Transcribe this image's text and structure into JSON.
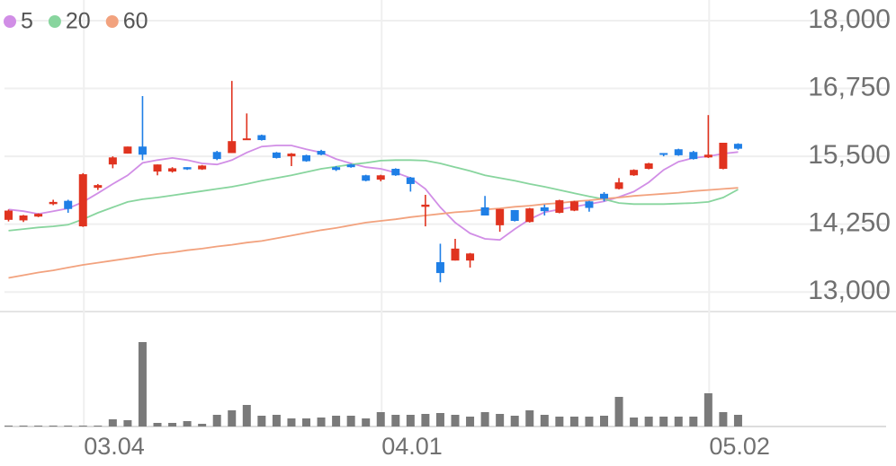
{
  "chart_data": [
    {
      "type": "candlestick",
      "categories": [
        null,
        null,
        null,
        null,
        null,
        "03.04",
        null,
        null,
        null,
        null,
        null,
        null,
        null,
        null,
        null,
        null,
        null,
        null,
        null,
        null,
        null,
        null,
        null,
        null,
        null,
        "04.01",
        null,
        null,
        null,
        null,
        null,
        null,
        null,
        null,
        null,
        null,
        null,
        null,
        null,
        null,
        null,
        null,
        null,
        null,
        null,
        null,
        null,
        "05.02",
        null,
        null
      ],
      "open": [
        14330,
        14320,
        14390,
        14620,
        14680,
        14210,
        14920,
        15350,
        15550,
        15680,
        15220,
        15220,
        15300,
        15260,
        15580,
        15560,
        15810,
        15890,
        15570,
        15500,
        15520,
        15600,
        15300,
        15350,
        15150,
        15070,
        15270,
        15110,
        14570,
        13550,
        13580,
        13580,
        14560,
        14230,
        14510,
        14290,
        14560,
        14460,
        14500,
        14670,
        14810,
        14900,
        15150,
        15270,
        15560,
        15630,
        15580,
        15480,
        15270,
        15730
      ],
      "high": [
        14520,
        14420,
        14450,
        14700,
        14700,
        15190,
        14990,
        15500,
        15680,
        16610,
        15350,
        15300,
        15300,
        15340,
        15600,
        16890,
        16290,
        15900,
        15580,
        15560,
        15530,
        15620,
        15320,
        15360,
        15160,
        15160,
        15280,
        15120,
        14790,
        13890,
        13980,
        13720,
        14770,
        14530,
        14510,
        14550,
        14610,
        14700,
        14680,
        14680,
        14840,
        15100,
        15260,
        15380,
        15560,
        15640,
        15600,
        16260,
        15750,
        15740
      ],
      "low": [
        14300,
        14290,
        14380,
        14600,
        14460,
        14200,
        14880,
        15280,
        15550,
        15430,
        15150,
        15200,
        15250,
        15250,
        15430,
        15560,
        15800,
        15790,
        15460,
        15320,
        15400,
        15520,
        15230,
        15290,
        15040,
        15040,
        15140,
        14850,
        14210,
        13180,
        13580,
        13450,
        14410,
        14110,
        14300,
        14280,
        14410,
        14450,
        14490,
        14480,
        14670,
        14890,
        15140,
        15260,
        15500,
        15510,
        15440,
        15470,
        15260,
        15620
      ],
      "close": [
        14500,
        14410,
        14440,
        14660,
        14530,
        15170,
        14970,
        15480,
        15680,
        15530,
        15350,
        15280,
        15260,
        15330,
        15450,
        15780,
        15830,
        15800,
        15470,
        15550,
        15410,
        15530,
        15250,
        15300,
        15050,
        15150,
        15150,
        14990,
        14610,
        13350,
        13800,
        13710,
        14410,
        14530,
        14310,
        14540,
        14490,
        14690,
        14670,
        14550,
        14720,
        15020,
        15250,
        15370,
        15530,
        15520,
        15450,
        15530,
        15750,
        15640
      ],
      "up_color": "#e0331f",
      "down_color": "#1f7fe6",
      "series": [
        {
          "name": "5",
          "color": "#d18ee6",
          "values": [
            14520,
            14490,
            14440,
            14490,
            14540,
            14660,
            14820,
            14990,
            15150,
            15380,
            15430,
            15470,
            15430,
            15370,
            15350,
            15430,
            15570,
            15680,
            15700,
            15700,
            15630,
            15570,
            15450,
            15370,
            15300,
            15270,
            15200,
            15100,
            14900,
            14560,
            14280,
            14080,
            13980,
            13960,
            14160,
            14340,
            14470,
            14520,
            14570,
            14620,
            14670,
            14750,
            14850,
            15020,
            15250,
            15400,
            15470,
            15500,
            15550,
            15580
          ]
        },
        {
          "name": "20",
          "color": "#88d59e",
          "values": [
            14130,
            14160,
            14190,
            14210,
            14240,
            14340,
            14460,
            14560,
            14660,
            14710,
            14740,
            14780,
            14820,
            14860,
            14900,
            14940,
            14990,
            15050,
            15100,
            15150,
            15210,
            15270,
            15310,
            15350,
            15380,
            15420,
            15430,
            15430,
            15420,
            15370,
            15300,
            15230,
            15150,
            15100,
            15050,
            14990,
            14940,
            14880,
            14820,
            14760,
            14710,
            14640,
            14620,
            14620,
            14620,
            14630,
            14640,
            14660,
            14740,
            14890
          ]
        },
        {
          "name": "60",
          "color": "#f2a27e",
          "values": [
            13260,
            13310,
            13360,
            13400,
            13450,
            13500,
            13540,
            13580,
            13620,
            13660,
            13700,
            13730,
            13770,
            13800,
            13840,
            13870,
            13910,
            13940,
            13990,
            14040,
            14090,
            14140,
            14180,
            14230,
            14280,
            14310,
            14340,
            14380,
            14410,
            14440,
            14470,
            14490,
            14520,
            14540,
            14570,
            14590,
            14620,
            14640,
            14670,
            14690,
            14720,
            14740,
            14770,
            14790,
            14810,
            14830,
            14860,
            14880,
            14900,
            14920
          ]
        }
      ],
      "ylim": [
        12640,
        18380
      ],
      "yticks": [
        {
          "value": 13000,
          "label": "13,000"
        },
        {
          "value": 14250,
          "label": "14,250"
        },
        {
          "value": 15500,
          "label": "15,500"
        },
        {
          "value": 16750,
          "label": "16,750"
        },
        {
          "value": 18000,
          "label": "18,000"
        }
      ],
      "grid": true
    },
    {
      "type": "bar",
      "values": [
        1000,
        1000,
        1000,
        1000,
        1000,
        1000,
        1000,
        8000,
        7000,
        94000,
        4000,
        4000,
        6000,
        3000,
        13000,
        18000,
        24000,
        12000,
        13000,
        9000,
        9000,
        10000,
        12000,
        12000,
        9000,
        16000,
        13000,
        13000,
        14000,
        15000,
        13000,
        11000,
        16000,
        14000,
        12000,
        18000,
        13000,
        11000,
        11000,
        11000,
        12000,
        33000,
        10000,
        11000,
        11000,
        11000,
        11000,
        37000,
        16000,
        13000
      ],
      "color": "#7a7a7a",
      "ylim": [
        0,
        128000
      ]
    }
  ]
}
